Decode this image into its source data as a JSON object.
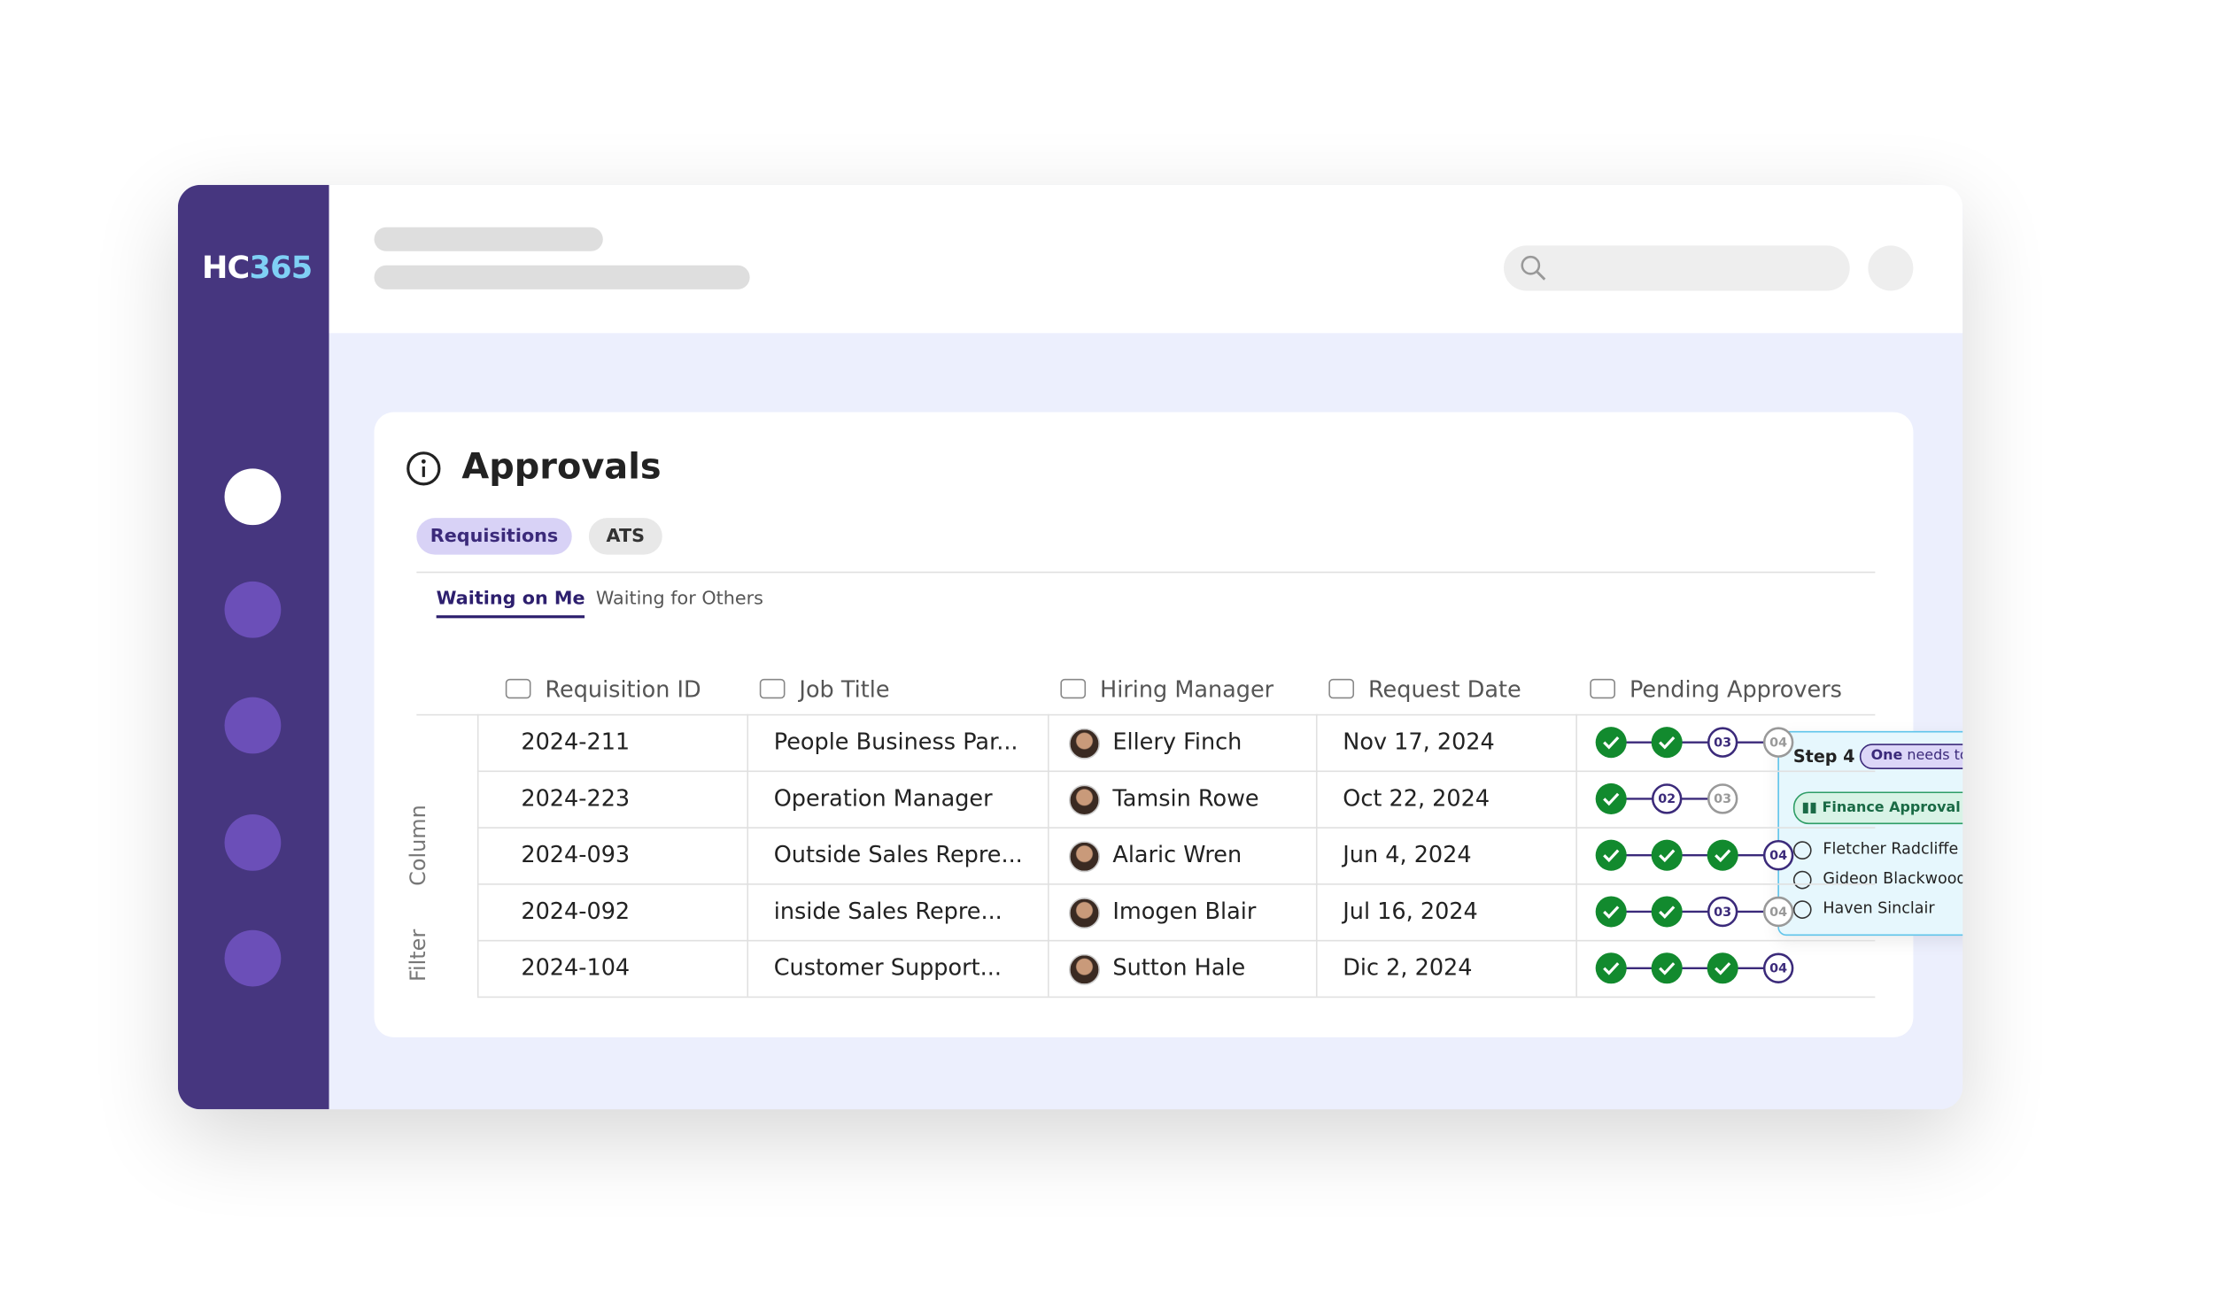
{
  "logo": {
    "brand": "HC",
    "number": "365"
  },
  "panel": {
    "title": "Approvals",
    "tabs": [
      "Requisitions",
      "ATS"
    ],
    "subtabs": [
      "Waiting on Me",
      "Waiting for Others"
    ],
    "side_labels": [
      "Column",
      "Filter"
    ]
  },
  "table": {
    "headers": [
      "Requisition ID",
      "Job Title",
      "Hiring Manager",
      "Request Date",
      "Pending Approvers"
    ],
    "rows": [
      {
        "id": "2024-211",
        "title": "People Business Par...",
        "manager": "Ellery Finch",
        "date": "Nov 17, 2024",
        "completed": 2,
        "pending": [
          "03",
          "04"
        ]
      },
      {
        "id": "2024-223",
        "title": "Operation Manager",
        "manager": "Tamsin Rowe",
        "date": "Oct 22, 2024",
        "completed": 1,
        "pending": [
          "02",
          "03"
        ]
      },
      {
        "id": "2024-093",
        "title": "Outside Sales Repre...",
        "manager": "Alaric Wren",
        "date": "Jun 4, 2024",
        "completed": 3,
        "pending": [
          "04"
        ]
      },
      {
        "id": "2024-092",
        "title": "inside Sales Repre...",
        "manager": "Imogen Blair",
        "date": "Jul 16, 2024",
        "completed": 2,
        "pending": [
          "03",
          "04"
        ]
      },
      {
        "id": "2024-104",
        "title": "Customer Support...",
        "manager": "Sutton Hale",
        "date": "Dic 2, 2024",
        "completed": 3,
        "pending": [
          "04"
        ]
      }
    ]
  },
  "tooltip": {
    "step": "Step 4",
    "badge_bold": "One",
    "badge_rest": "needs to approve",
    "status": "Finance Approval Pending",
    "approvers": [
      "Fletcher Radcliffe",
      "Gideon Blackwood",
      "Haven Sinclair"
    ]
  }
}
